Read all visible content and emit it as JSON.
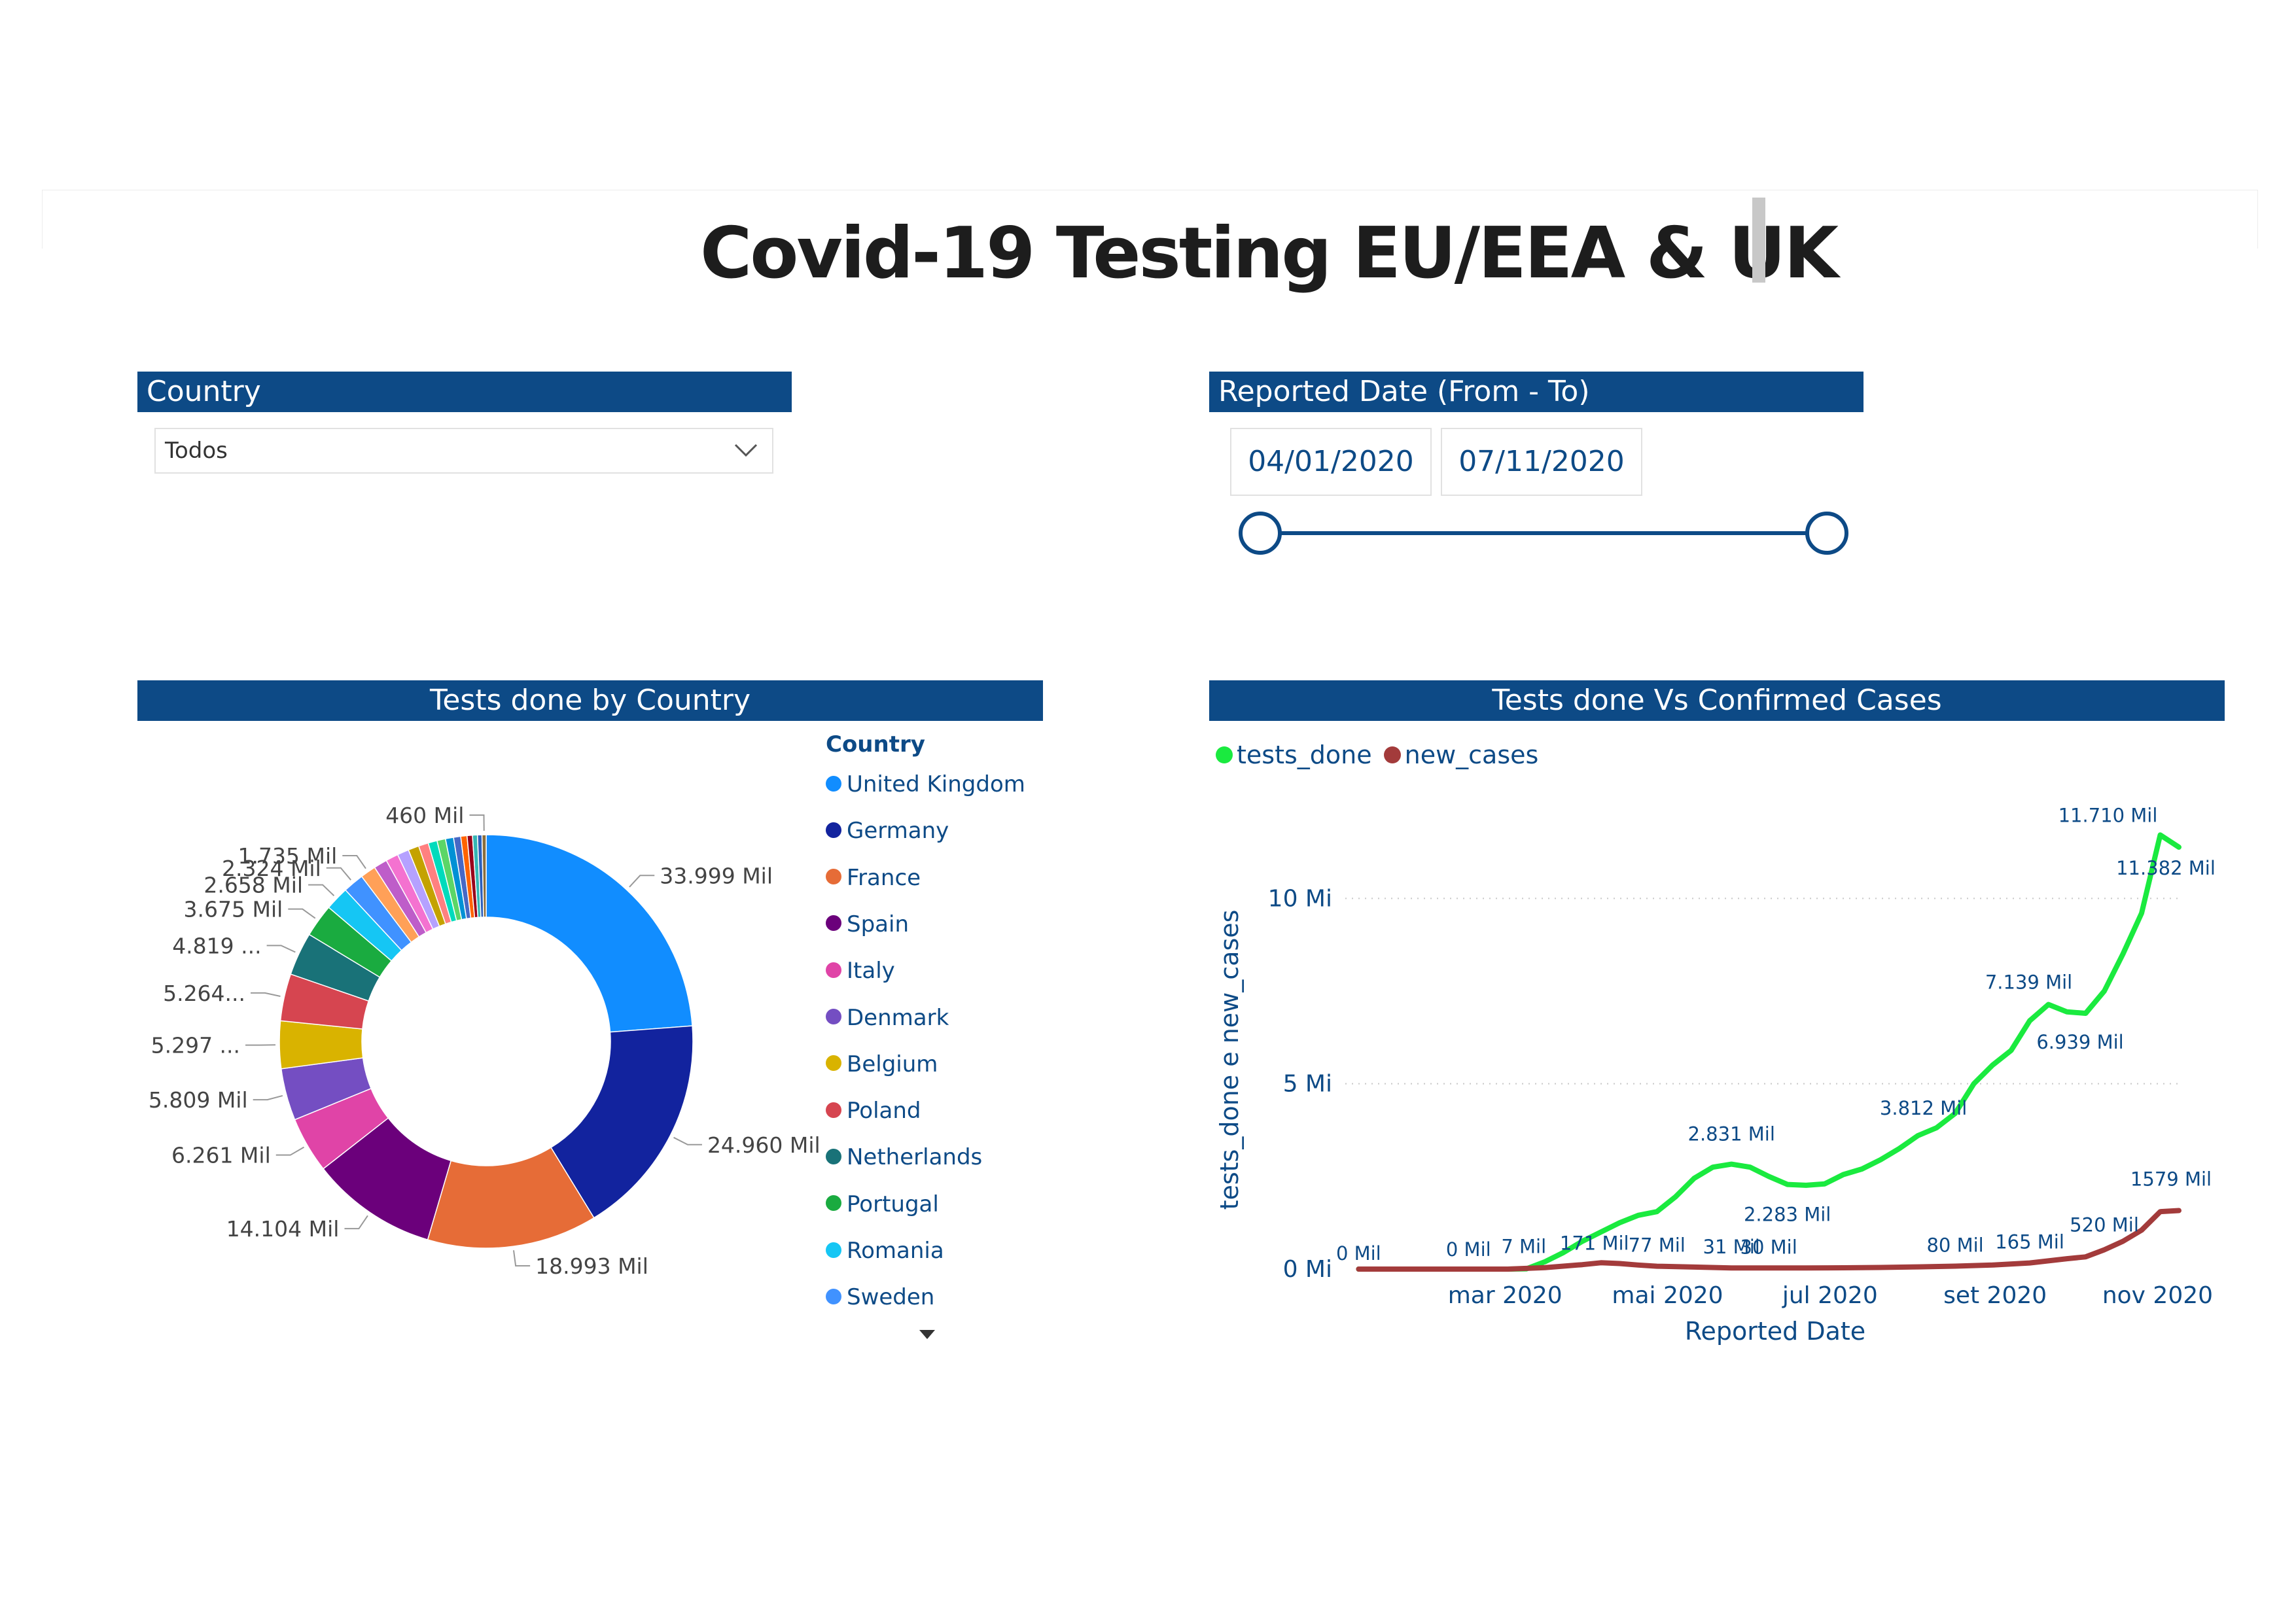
{
  "title": "Covid-19 Testing EU/EEA & UK",
  "filters": {
    "country": {
      "header": "Country",
      "value": "Todos"
    },
    "date": {
      "header": "Reported Date (From - To)",
      "from": "04/01/2020",
      "to": "07/11/2020"
    }
  },
  "colors": {
    "header_bg": "#0d4a86",
    "accent_text": "#0d4a86"
  },
  "icons": {
    "dropdown": "chevron-down-icon",
    "more": "caret-down-icon"
  },
  "chart_data": [
    {
      "type": "pie",
      "title": "Tests done by Country",
      "legend_title": "Country",
      "legend_position": "right",
      "donut": true,
      "slices": [
        {
          "name": "United Kingdom",
          "value": 33999,
          "label": "33.999 Mil",
          "color": "#118dff"
        },
        {
          "name": "Germany",
          "value": 24960,
          "label": "24.960 Mil",
          "color": "#12239e"
        },
        {
          "name": "France",
          "value": 18993,
          "label": "18.993 Mil",
          "color": "#e66c37"
        },
        {
          "name": "Spain",
          "value": 14104,
          "label": "14.104 Mil",
          "color": "#6b007b"
        },
        {
          "name": "Italy",
          "value": 6261,
          "label": "6.261 Mil",
          "color": "#e044a7"
        },
        {
          "name": "Denmark",
          "value": 5809,
          "label": "5.809 Mil",
          "color": "#744ec2"
        },
        {
          "name": "Belgium",
          "value": 5297,
          "label": "5.297 ...",
          "color": "#d9b300"
        },
        {
          "name": "Poland",
          "value": 5264,
          "label": "5.264...",
          "color": "#d64550"
        },
        {
          "name": "Netherlands",
          "value": 4819,
          "label": "4.819 ...",
          "color": "#197278"
        },
        {
          "name": "Portugal",
          "value": 3675,
          "label": "3.675 Mil",
          "color": "#1aab40"
        },
        {
          "name": "Romania",
          "value": 2658,
          "label": "2.658 Mil",
          "color": "#15c6f4"
        },
        {
          "name": "Sweden",
          "value": 2324,
          "label": "2.324 Mil",
          "color": "#4092ff"
        },
        {
          "value": 1735,
          "label": "1.735 Mil",
          "color": "#ffa058"
        },
        {
          "value": 1500,
          "label": "",
          "color": "#be5dc9"
        },
        {
          "value": 1400,
          "label": "",
          "color": "#f472d0"
        },
        {
          "value": 1300,
          "label": "",
          "color": "#b5a1ff"
        },
        {
          "value": 1200,
          "label": "",
          "color": "#c4a200"
        },
        {
          "value": 1100,
          "label": "",
          "color": "#ff8080"
        },
        {
          "value": 1000,
          "label": "",
          "color": "#00dbbc"
        },
        {
          "value": 950,
          "label": "",
          "color": "#5bd667"
        },
        {
          "value": 900,
          "label": "",
          "color": "#0091d5"
        },
        {
          "value": 800,
          "label": "",
          "color": "#4668c5"
        },
        {
          "value": 700,
          "label": "",
          "color": "#ff6300"
        },
        {
          "value": 600,
          "label": "",
          "color": "#99001a"
        },
        {
          "value": 550,
          "label": "",
          "color": "#35b6b4"
        },
        {
          "value": 500,
          "label": "",
          "color": "#2d5fba"
        },
        {
          "value": 460,
          "label": "460 Mil",
          "color": "#8a6d3b"
        }
      ]
    },
    {
      "type": "line",
      "title": "Tests done Vs Confirmed Cases",
      "xlabel": "Reported Date",
      "ylabel": "tests_done e new_cases",
      "legend_position": "top-left",
      "grid": true,
      "ylim": [
        0,
        12000000
      ],
      "yticks": [
        {
          "value": 0,
          "label": "0 Mi"
        },
        {
          "value": 5000000,
          "label": "5 Mi"
        },
        {
          "value": 10000000,
          "label": "10 Mi"
        }
      ],
      "xlim": [
        "2020-01-01",
        "2020-11-09"
      ],
      "xticks": [
        {
          "x": "2020-03-01",
          "label": "mar 2020"
        },
        {
          "x": "2020-05-01",
          "label": "mai 2020"
        },
        {
          "x": "2020-07-01",
          "label": "jul 2020"
        },
        {
          "x": "2020-09-01",
          "label": "set 2020"
        },
        {
          "x": "2020-11-01",
          "label": "nov 2020"
        }
      ],
      "series": [
        {
          "name": "tests_done",
          "color": "#1aea3f",
          "x": [
            "2020-01-06",
            "2020-01-20",
            "2020-02-03",
            "2020-02-17",
            "2020-03-02",
            "2020-03-09",
            "2020-03-16",
            "2020-03-23",
            "2020-03-30",
            "2020-04-06",
            "2020-04-13",
            "2020-04-20",
            "2020-04-27",
            "2020-05-04",
            "2020-05-11",
            "2020-05-18",
            "2020-05-25",
            "2020-06-01",
            "2020-06-08",
            "2020-06-15",
            "2020-06-22",
            "2020-06-29",
            "2020-07-06",
            "2020-07-13",
            "2020-07-20",
            "2020-07-27",
            "2020-08-03",
            "2020-08-10",
            "2020-08-17",
            "2020-08-24",
            "2020-08-31",
            "2020-09-07",
            "2020-09-14",
            "2020-09-21",
            "2020-09-28",
            "2020-10-05",
            "2020-10-12",
            "2020-10-19",
            "2020-10-26",
            "2020-11-02",
            "2020-11-09"
          ],
          "y": [
            0,
            0,
            0,
            0,
            0,
            7000,
            200000,
            450000,
            750000,
            1000000,
            1250000,
            1450000,
            1550000,
            1950000,
            2450000,
            2750000,
            2831000,
            2750000,
            2500000,
            2283000,
            2260000,
            2300000,
            2550000,
            2700000,
            2950000,
            3250000,
            3600000,
            3812000,
            4200000,
            5000000,
            5500000,
            5900000,
            6700000,
            7139000,
            6939000,
            6900000,
            7500000,
            8500000,
            9600000,
            11710000,
            11382000
          ],
          "labels": [
            {
              "i": 0,
              "text": "0 Mil"
            },
            {
              "i": 4,
              "text": "0 Mil"
            },
            {
              "i": 5,
              "text": "7 Mil"
            },
            {
              "i": 16,
              "text": "2.831 Mil"
            },
            {
              "i": 19,
              "text": "2.283 Mil"
            },
            {
              "i": 27,
              "text": "3.812 Mil"
            },
            {
              "i": 33,
              "text": "7.139 Mil"
            },
            {
              "i": 34,
              "text": "6.939 Mil"
            },
            {
              "i": 39,
              "text": "11.710 Mil"
            },
            {
              "i": 40,
              "text": "11.382 Mil"
            }
          ]
        },
        {
          "name": "new_cases",
          "color": "#a33b3b",
          "x": [
            "2020-01-06",
            "2020-01-20",
            "2020-02-03",
            "2020-02-17",
            "2020-03-02",
            "2020-03-16",
            "2020-03-30",
            "2020-04-06",
            "2020-04-13",
            "2020-04-20",
            "2020-04-27",
            "2020-05-11",
            "2020-05-25",
            "2020-06-08",
            "2020-06-22",
            "2020-07-06",
            "2020-07-20",
            "2020-08-03",
            "2020-08-17",
            "2020-08-31",
            "2020-09-14",
            "2020-09-28",
            "2020-10-05",
            "2020-10-12",
            "2020-10-19",
            "2020-10-26",
            "2020-11-02",
            "2020-11-09"
          ],
          "y": [
            0,
            0,
            0,
            0,
            0,
            40000,
            120000,
            171000,
            150000,
            110000,
            77000,
            55000,
            31000,
            30000,
            30000,
            35000,
            45000,
            60000,
            80000,
            110000,
            165000,
            280000,
            330000,
            520000,
            750000,
            1050000,
            1550000,
            1579000
          ],
          "labels": [
            {
              "i": 7,
              "text": "171 Mil"
            },
            {
              "i": 10,
              "text": "77 Mil"
            },
            {
              "i": 12,
              "text": "31 Mil"
            },
            {
              "i": 13,
              "text": "30 Mil"
            },
            {
              "i": 18,
              "text": "80 Mil"
            },
            {
              "i": 20,
              "text": "165 Mil"
            },
            {
              "i": 23,
              "text": "520 Mil"
            },
            {
              "i": 27,
              "text": "1579 Mil"
            }
          ]
        }
      ]
    }
  ]
}
